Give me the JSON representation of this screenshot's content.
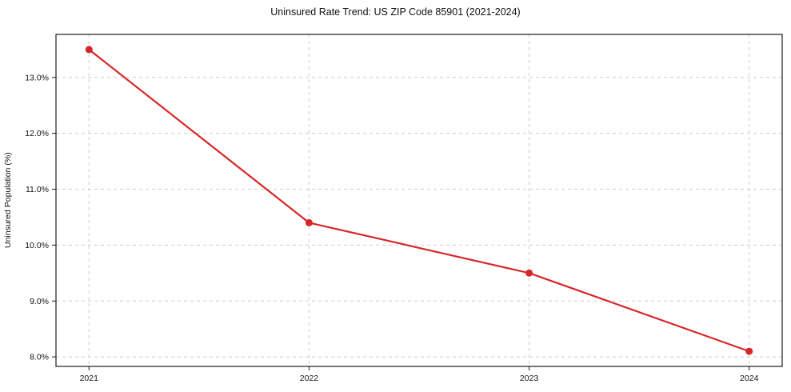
{
  "chart_data": {
    "type": "line",
    "title": "Uninsured Rate Trend: US ZIP Code 85901 (2021-2024)",
    "xlabel": "",
    "ylabel": "Uninsured Population (%)",
    "x": [
      2021,
      2022,
      2023,
      2024
    ],
    "categories": [
      "2021",
      "2022",
      "2023",
      "2024"
    ],
    "series": [
      {
        "name": "Uninsured rate",
        "values": [
          13.5,
          10.4,
          9.5,
          8.1
        ]
      }
    ],
    "xlim": [
      2020.85,
      2024.15
    ],
    "ylim": [
      7.83,
      13.77
    ],
    "xticks": [
      2021,
      2022,
      2023,
      2024
    ],
    "xtick_labels": [
      "2021",
      "2022",
      "2023",
      "2024"
    ],
    "yticks": [
      8.0,
      9.0,
      10.0,
      11.0,
      12.0,
      13.0
    ],
    "ytick_labels": [
      "8.0%",
      "9.0%",
      "10.0%",
      "11.0%",
      "12.0%",
      "13.0%"
    ],
    "grid": true,
    "legend": "none",
    "colors": {
      "line": "#d62728",
      "marker": "#d62728",
      "grid": "#cccccc",
      "axis": "#1a1a1a",
      "text": "#111111",
      "background": "#ffffff"
    }
  }
}
